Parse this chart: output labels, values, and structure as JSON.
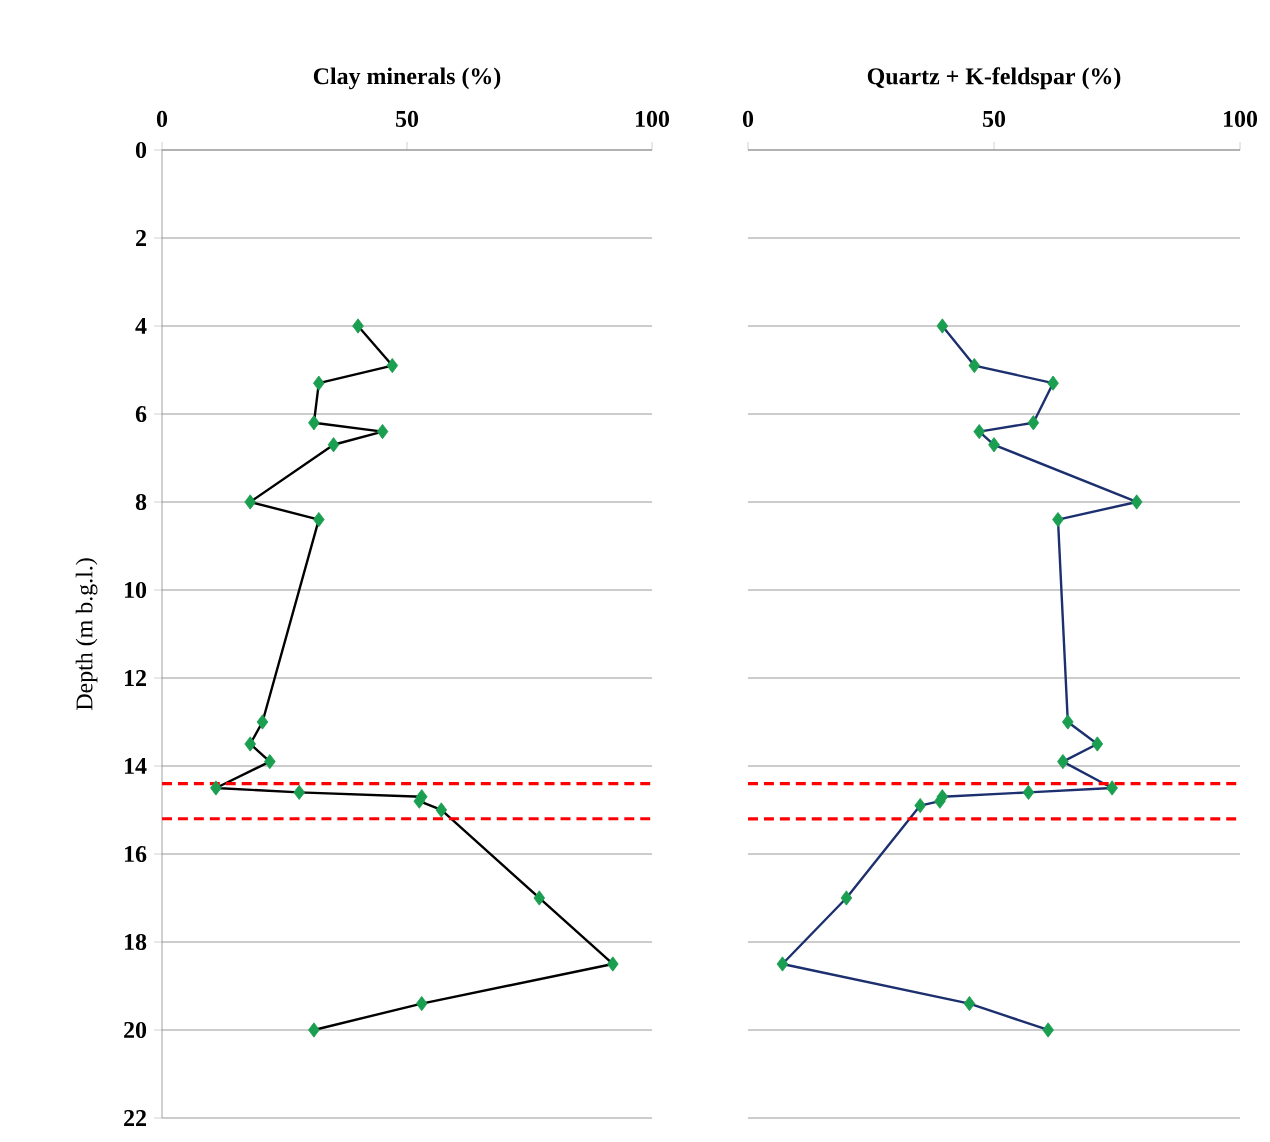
{
  "chart_data": [
    {
      "type": "line",
      "xlabel": "Clay minerals (%)",
      "ylabel": "Depth (m b.g.l.)",
      "xlim": [
        0,
        100
      ],
      "xticks": [
        0,
        50,
        100
      ],
      "ylim": [
        22,
        0
      ],
      "yticks": [
        0,
        2,
        4,
        6,
        8,
        10,
        12,
        14,
        16,
        18,
        20,
        22
      ],
      "grid": "y",
      "marker": "diamond",
      "line_style": "solid",
      "ref_lines": [
        {
          "axis": "y",
          "value": 14.4,
          "color": "#ff0000",
          "line_style": "dashed"
        },
        {
          "axis": "y",
          "value": 15.2,
          "color": "#ff0000",
          "line_style": "dashed"
        }
      ],
      "series": [
        {
          "color": "#000000",
          "colors": [
            "#1a9e50",
            "#1a9e50",
            "#1a9e50",
            "#1a9e50",
            "#1a9e50",
            "#1a9e50",
            "#1a9e50",
            "#1a9e50",
            "#1a9e50",
            "#1a9e50",
            "#1a9e50",
            "#1a9e50",
            "#1a9e50",
            "#1a9e50",
            "#1a9e50",
            "#1a9e50",
            "#1a9e50",
            "#1a9e50",
            "#1a9e50",
            "#1a9e50"
          ],
          "x": [
            40,
            47,
            32,
            31,
            45,
            35,
            18,
            32,
            20.5,
            18,
            22,
            11,
            28,
            53,
            52.5,
            57,
            77,
            92,
            53,
            31
          ],
          "values": [
            4.0,
            4.9,
            5.3,
            6.2,
            6.4,
            6.7,
            8.0,
            8.4,
            13.0,
            13.5,
            13.9,
            14.5,
            14.6,
            14.7,
            14.8,
            15.0,
            17.0,
            18.5,
            19.4,
            20.0
          ]
        }
      ]
    },
    {
      "type": "line",
      "xlabel": "Quartz + K-feldspar (%)",
      "xlim": [
        0,
        100
      ],
      "xticks": [
        0,
        50,
        100
      ],
      "ylim": [
        22,
        0
      ],
      "yticks": [
        0,
        2,
        4,
        6,
        8,
        10,
        12,
        14,
        16,
        18,
        20,
        22
      ],
      "tick_labels": "x",
      "grid": "y",
      "marker": "diamond",
      "line_style": "solid",
      "ref_lines": [
        {
          "axis": "y",
          "value": 14.4,
          "color": "#ff0000",
          "line_style": "dashed"
        },
        {
          "axis": "y",
          "value": 15.2,
          "color": "#ff0000",
          "line_style": "dashed"
        }
      ],
      "series": [
        {
          "color": "#1c2f6e",
          "colors": [
            "#1a9e50",
            "#1a9e50",
            "#1a9e50",
            "#1a9e50",
            "#1a9e50",
            "#1a9e50",
            "#1a9e50",
            "#1a9e50",
            "#1a9e50",
            "#1a9e50",
            "#1a9e50",
            "#1a9e50",
            "#1a9e50",
            "#1a9e50",
            "#1a9e50",
            "#1a9e50",
            "#1a9e50",
            "#1a9e50",
            "#1a9e50",
            "#1a9e50"
          ],
          "x": [
            39.5,
            46,
            62,
            58,
            47,
            50,
            79,
            63,
            65,
            71,
            64,
            74,
            57,
            39.5,
            39,
            35,
            20,
            7,
            45,
            61
          ],
          "values": [
            4.0,
            4.9,
            5.3,
            6.2,
            6.4,
            6.7,
            8.0,
            8.4,
            13.0,
            13.5,
            13.9,
            14.5,
            14.6,
            14.7,
            14.8,
            14.9,
            17.0,
            18.5,
            19.4,
            20.0
          ]
        }
      ]
    }
  ]
}
